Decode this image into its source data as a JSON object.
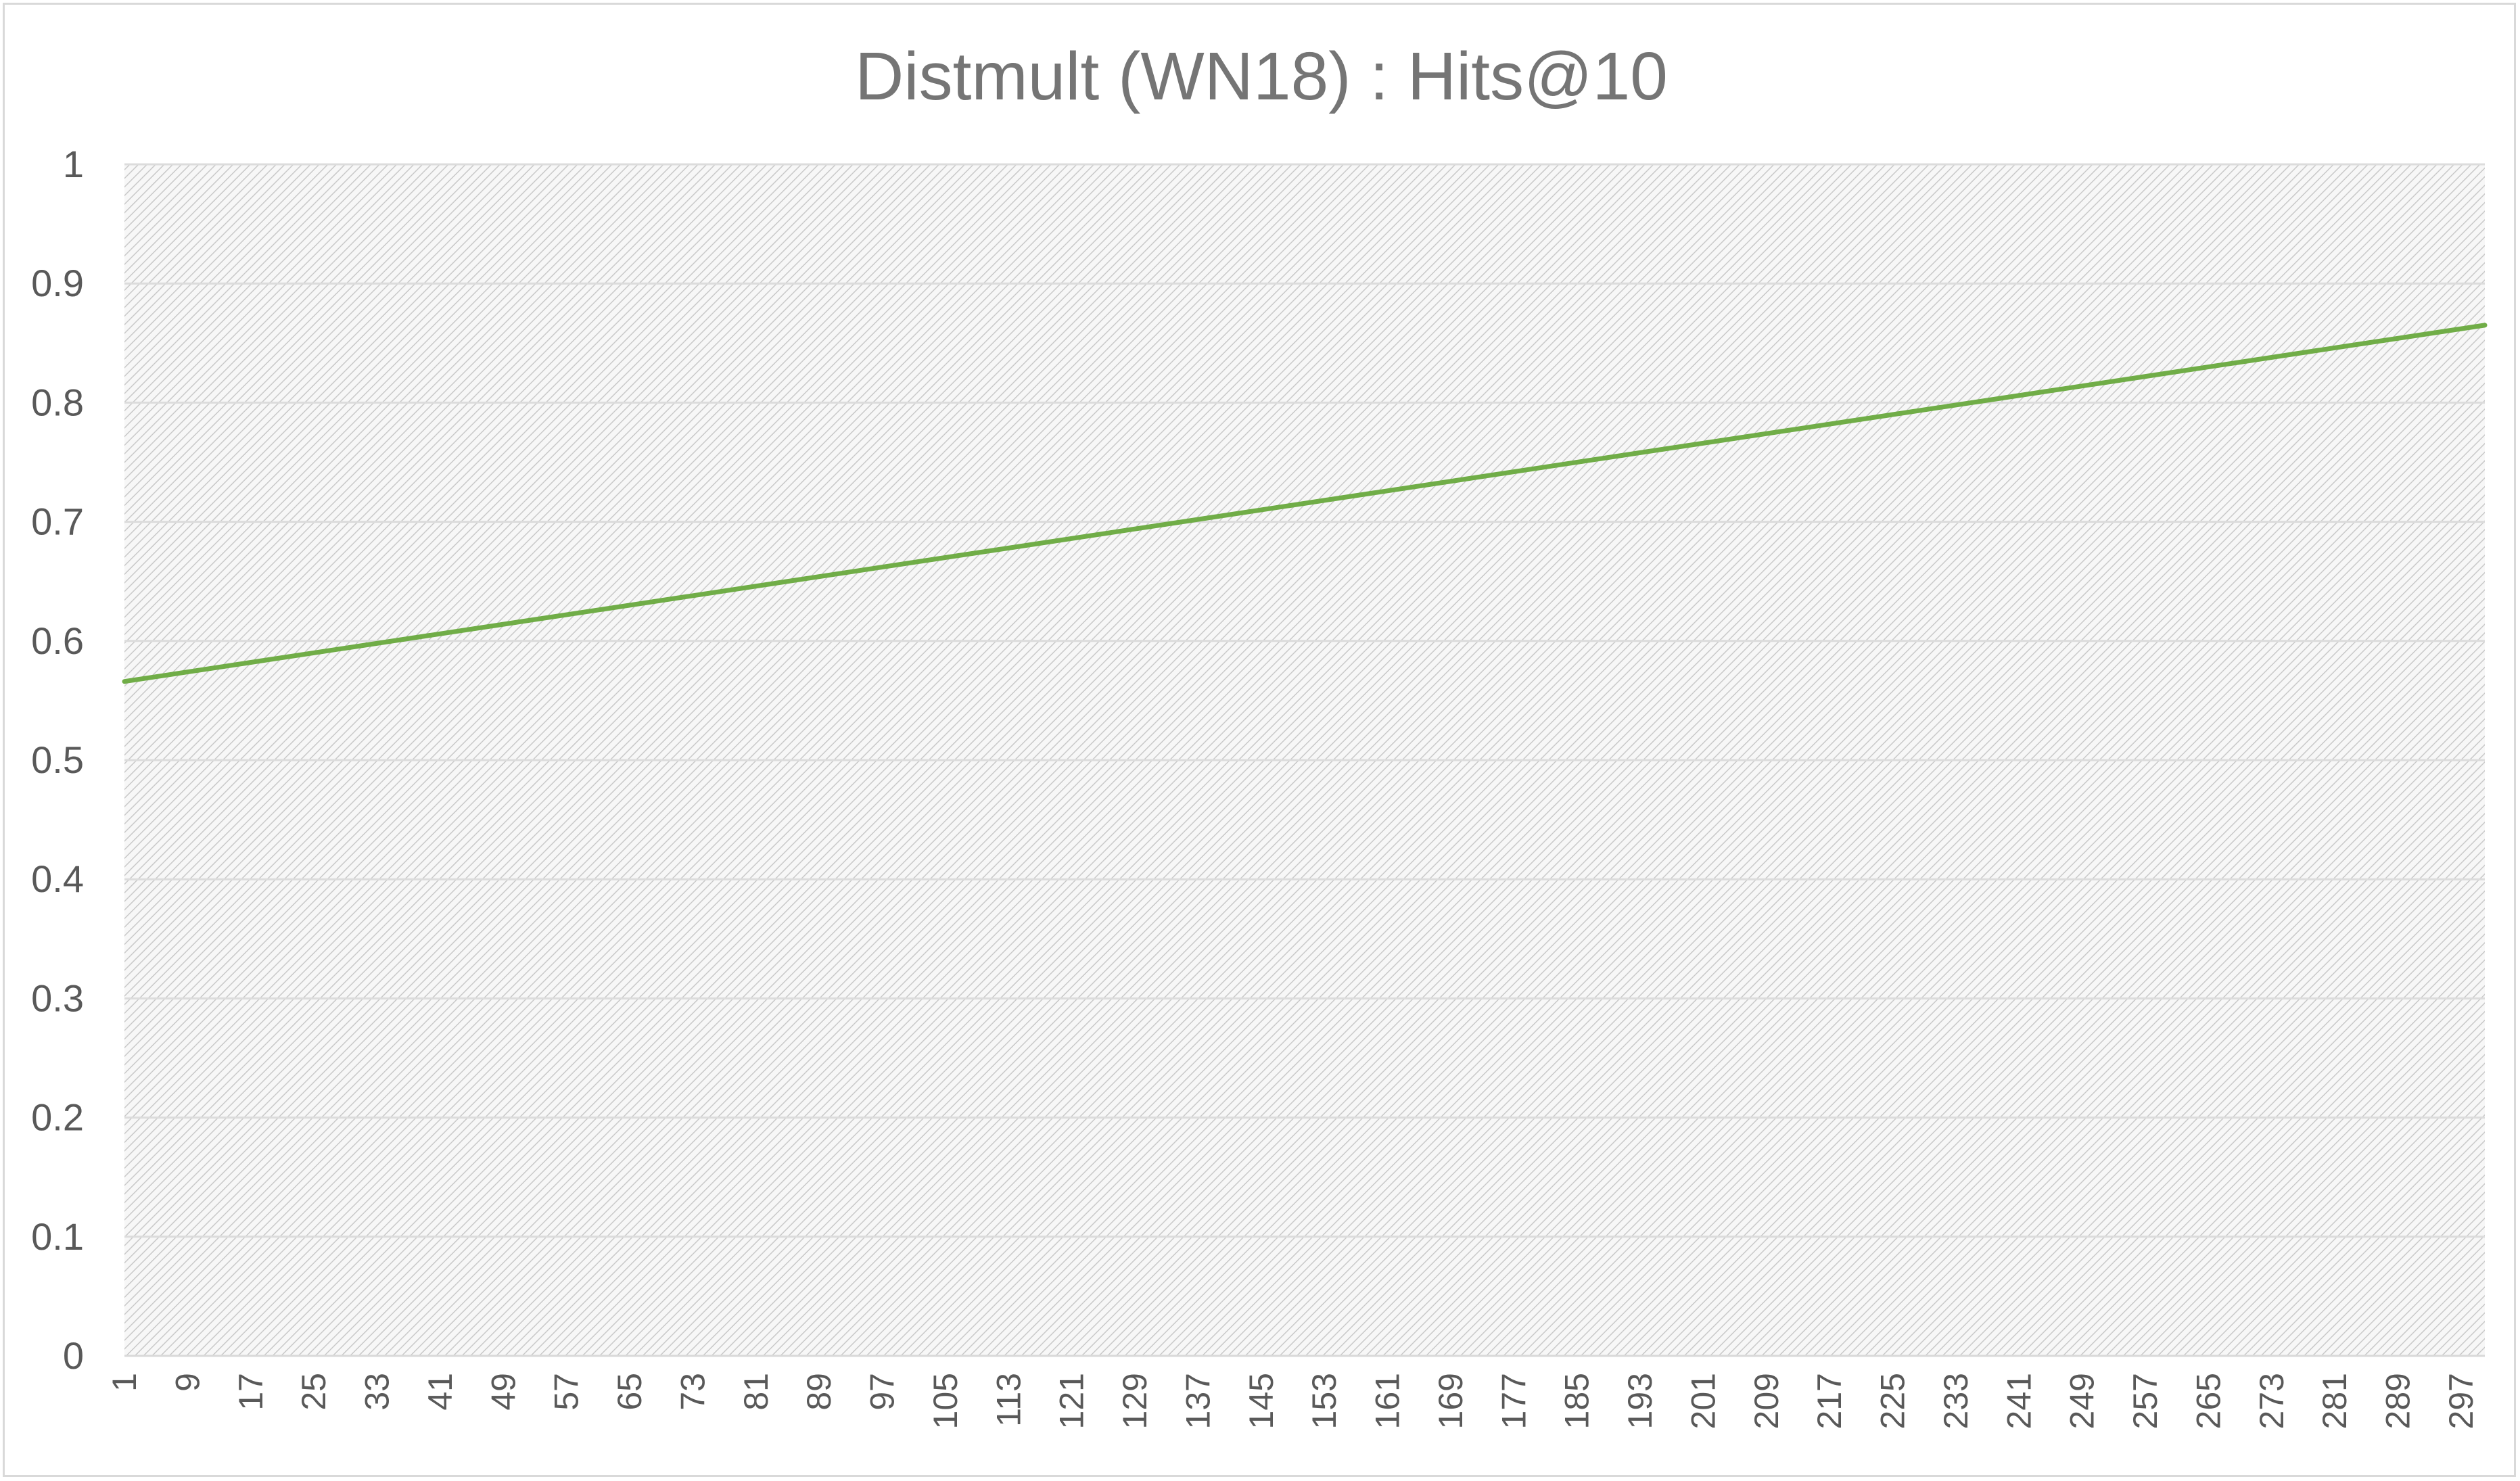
{
  "chart_data": {
    "type": "line",
    "title": "Distmult (WN18) : Hits@10",
    "xlabel": "",
    "ylabel": "",
    "x_range": [
      1,
      300
    ],
    "x_tick_labels": [
      "1",
      "9",
      "17",
      "25",
      "33",
      "41",
      "49",
      "57",
      "65",
      "73",
      "81",
      "89",
      "97",
      "105",
      "113",
      "121",
      "129",
      "137",
      "145",
      "153",
      "161",
      "169",
      "177",
      "185",
      "193",
      "201",
      "209",
      "217",
      "225",
      "233",
      "241",
      "249",
      "257",
      "265",
      "273",
      "281",
      "289",
      "297"
    ],
    "y_tick_labels": [
      "0",
      "0.1",
      "0.2",
      "0.3",
      "0.4",
      "0.5",
      "0.6",
      "0.7",
      "0.8",
      "0.9",
      "1"
    ],
    "ylim": [
      0,
      1
    ],
    "grid": true,
    "legend": "none",
    "series": [
      {
        "color": "#70ad47",
        "x": [
          1,
          300
        ],
        "y": [
          0.566,
          0.865
        ]
      }
    ]
  }
}
